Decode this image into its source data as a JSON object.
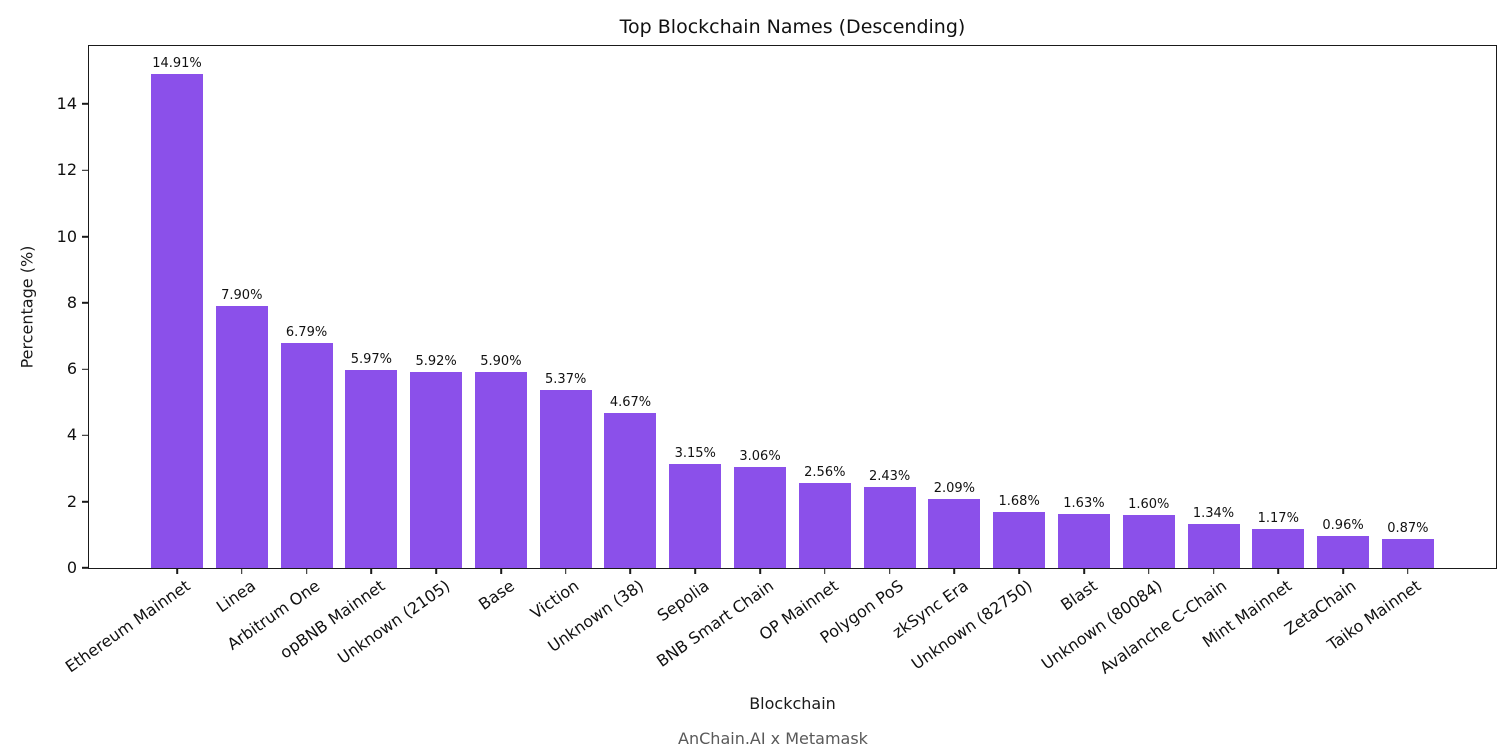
{
  "chart_data": {
    "type": "bar",
    "title": "Top Blockchain Names (Descending)",
    "xlabel": "Blockchain",
    "ylabel": "Percentage (%)",
    "categories": [
      "Ethereum Mainnet",
      "Linea",
      "Arbitrum One",
      "opBNB Mainnet",
      "Unknown (2105)",
      "Base",
      "Viction",
      "Unknown (38)",
      "Sepolia",
      "BNB Smart Chain",
      "OP Mainnet",
      "Polygon PoS",
      "zkSync Era",
      "Unknown (82750)",
      "Blast",
      "Unknown (80084)",
      "Avalanche C-Chain",
      "Mint Mainnet",
      "ZetaChain",
      "Taiko Mainnet"
    ],
    "values": [
      14.91,
      7.9,
      6.79,
      5.97,
      5.92,
      5.9,
      5.37,
      4.67,
      3.15,
      3.06,
      2.56,
      2.43,
      2.09,
      1.68,
      1.63,
      1.6,
      1.34,
      1.17,
      0.96,
      0.87
    ],
    "value_labels": [
      "14.91%",
      "7.90%",
      "6.79%",
      "5.97%",
      "5.92%",
      "5.90%",
      "5.37%",
      "4.67%",
      "3.15%",
      "3.06%",
      "2.56%",
      "2.43%",
      "2.09%",
      "1.68%",
      "1.63%",
      "1.60%",
      "1.34%",
      "1.17%",
      "0.96%",
      "0.87%"
    ],
    "yticks": [
      0,
      2,
      4,
      6,
      8,
      10,
      12,
      14
    ],
    "ylim": [
      0,
      15.75
    ],
    "bar_color": "#8B50EA",
    "grid": false,
    "legend_position": "none"
  },
  "footer": {
    "caption": "AnChain.AI x Metamask"
  }
}
